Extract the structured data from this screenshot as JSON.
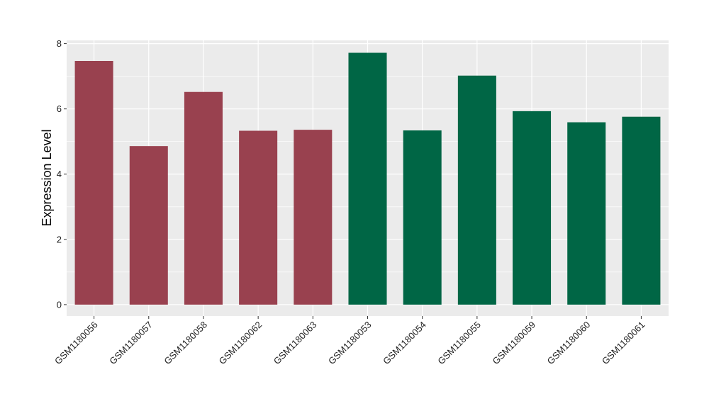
{
  "chart_data": {
    "type": "bar",
    "title": "",
    "xlabel": "",
    "ylabel": "Expression Level",
    "ylim": [
      -0.35,
      8.1
    ],
    "yticks": [
      0,
      2,
      4,
      6,
      8
    ],
    "grid": true,
    "legend": "none",
    "categories": [
      "GSM1180056",
      "GSM1180057",
      "GSM1180058",
      "GSM1180062",
      "GSM1180063",
      "GSM1180053",
      "GSM1180054",
      "GSM1180055",
      "GSM1180059",
      "GSM1180060",
      "GSM1180061"
    ],
    "values": [
      7.47,
      4.86,
      6.52,
      5.33,
      5.36,
      7.72,
      5.34,
      7.02,
      5.93,
      5.59,
      5.76
    ],
    "bar_colors": [
      "#99414f",
      "#99414f",
      "#99414f",
      "#99414f",
      "#99414f",
      "#006645",
      "#006645",
      "#006645",
      "#006645",
      "#006645",
      "#006645"
    ],
    "panel_background": "#ebebeb",
    "grid_color": "#ffffff"
  }
}
